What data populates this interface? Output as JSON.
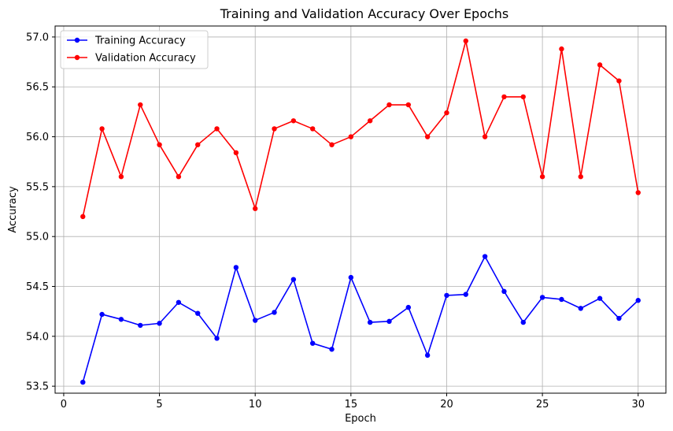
{
  "chart_data": {
    "type": "line",
    "title": "Training and Validation Accuracy Over Epochs",
    "xlabel": "Epoch",
    "ylabel": "Accuracy",
    "xlim": [
      -0.45,
      31.45
    ],
    "ylim": [
      53.43,
      57.11
    ],
    "xticks": [
      0,
      5,
      10,
      15,
      20,
      25,
      30
    ],
    "yticks": [
      53.5,
      54.0,
      54.5,
      55.0,
      55.5,
      56.0,
      56.5,
      57.0
    ],
    "xtick_labels": [
      "0",
      "5",
      "10",
      "15",
      "20",
      "25",
      "30"
    ],
    "ytick_labels": [
      "53.5",
      "54.0",
      "54.5",
      "55.0",
      "55.5",
      "56.0",
      "56.5",
      "57.0"
    ],
    "grid": true,
    "legend_position": "top-left",
    "x": [
      1,
      2,
      3,
      4,
      5,
      6,
      7,
      8,
      9,
      10,
      11,
      12,
      13,
      14,
      15,
      16,
      17,
      18,
      19,
      20,
      21,
      22,
      23,
      24,
      25,
      26,
      27,
      28,
      29,
      30
    ],
    "series": [
      {
        "name": "Training Accuracy",
        "color": "#0000ff",
        "marker": "circle",
        "values": [
          53.54,
          54.22,
          54.17,
          54.11,
          54.13,
          54.34,
          54.23,
          53.98,
          54.69,
          54.16,
          54.24,
          54.57,
          53.93,
          53.87,
          54.59,
          54.14,
          54.15,
          54.29,
          53.81,
          54.41,
          54.42,
          54.8,
          54.45,
          54.14,
          54.39,
          54.37,
          54.28,
          54.38,
          54.18,
          54.36
        ]
      },
      {
        "name": "Validation Accuracy",
        "color": "#ff0000",
        "marker": "circle",
        "values": [
          55.2,
          56.08,
          55.6,
          56.32,
          55.92,
          55.6,
          55.92,
          56.08,
          55.84,
          55.28,
          56.08,
          56.16,
          56.08,
          55.92,
          56.0,
          56.16,
          56.32,
          56.32,
          56.0,
          56.24,
          56.96,
          56.0,
          56.4,
          56.4,
          55.6,
          56.88,
          55.6,
          56.72,
          56.56,
          55.44
        ]
      }
    ]
  }
}
